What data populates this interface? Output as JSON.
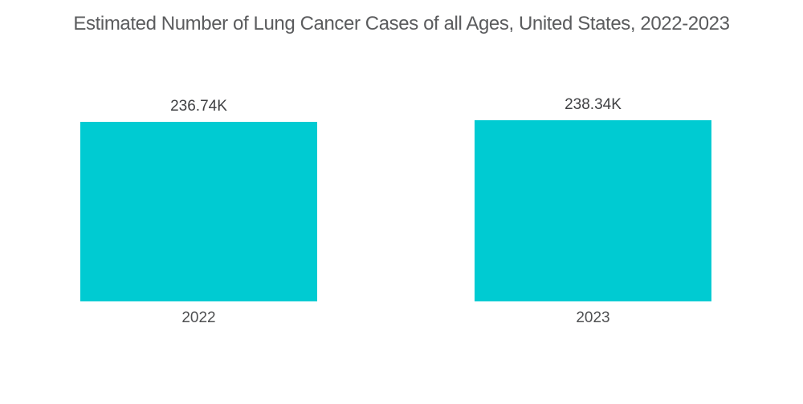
{
  "chart_data": {
    "type": "bar",
    "title": "Estimated Number of Lung Cancer Cases of all Ages, United States, 2022-2023",
    "categories": [
      "2022",
      "2023"
    ],
    "values": [
      236.74,
      238.34
    ],
    "value_labels": [
      "236.74K",
      "238.34K"
    ],
    "unit": "K",
    "xlabel": "",
    "ylabel": "",
    "ylim": [
      0,
      238.34
    ],
    "grid": false,
    "legend": false,
    "axes_visible": false,
    "bar_color": "#00cbd2",
    "background_color": "#ffffff",
    "title_color": "#5b5c5e",
    "value_label_color": "#3f4043",
    "category_label_color": "#4f5052"
  }
}
